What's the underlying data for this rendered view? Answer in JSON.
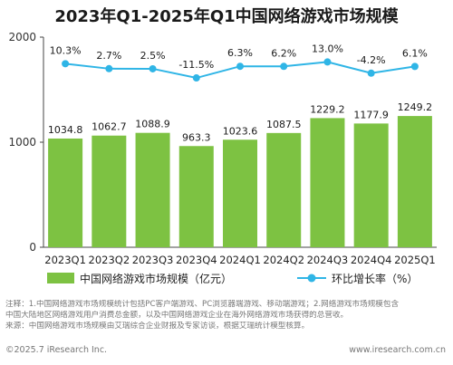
{
  "chart_data": {
    "type": "bar",
    "title": "2023年Q1-2025年Q1中国网络游戏市场规模",
    "categories": [
      "2023Q1",
      "2023Q2",
      "2023Q3",
      "2023Q4",
      "2024Q1",
      "2024Q2",
      "2024Q3",
      "2024Q4",
      "2025Q1"
    ],
    "series": [
      {
        "name": "中国网络游戏市场规模（亿元）",
        "type": "bar",
        "color": "#7dc242",
        "values": [
          1034.8,
          1062.7,
          1088.9,
          963.3,
          1023.6,
          1087.5,
          1229.2,
          1177.9,
          1249.2
        ]
      },
      {
        "name": "环比增长率（%）",
        "type": "line",
        "color": "#2fb5e6",
        "values": [
          10.3,
          2.7,
          2.5,
          -11.5,
          6.3,
          6.2,
          13.0,
          -4.2,
          6.1
        ],
        "labels": [
          "10.3%",
          "2.7%",
          "2.5%",
          "-11.5%",
          "6.3%",
          "6.2%",
          "13.0%",
          "-4.2%",
          "6.1%"
        ]
      }
    ],
    "yticks": [
      "0",
      "1000",
      "2000"
    ],
    "ylim": [
      0,
      2000
    ],
    "legend_position": "bottom",
    "grid": false
  },
  "notes": [
    "注释：1.中国网络游戏市场规模统计包括PC客户端游戏、PC浏览器端游戏、移动端游戏；2.网络游戏市场规模包含",
    "中国大陆地区网络游戏用户消费总金额，以及中国网络游戏企业在海外网络游戏市场获得的总营收。",
    "来源：中国网络游戏市场规模由艾瑞综合企业财报及专家访谈，根据艾瑞统计模型核算。"
  ],
  "footer": {
    "copyright": "©2025.7 iResearch Inc.",
    "url": "www.iresearch.com.cn"
  }
}
